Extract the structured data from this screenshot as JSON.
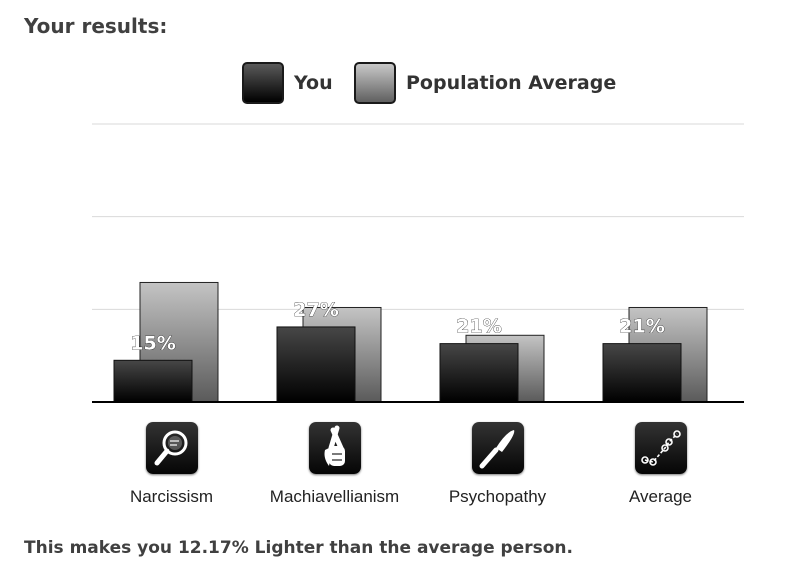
{
  "heading": "Your results:",
  "legend": {
    "you": "You",
    "population": "Population Average"
  },
  "chart_data": {
    "type": "bar",
    "categories": [
      "Narcissism",
      "Machiavellianism",
      "Psychopathy",
      "Average"
    ],
    "series": [
      {
        "name": "You",
        "values": [
          15,
          27,
          21,
          21
        ],
        "labels": [
          "15%",
          "27%",
          "21%",
          "21%"
        ]
      },
      {
        "name": "Population Average",
        "values": [
          43,
          34,
          24,
          34
        ]
      }
    ],
    "ylim": [
      0,
      100
    ],
    "gridlines": [
      33.3,
      66.7,
      100
    ],
    "legend_position": "top-center",
    "icons": [
      "magnifier-icon",
      "crossed-fingers-icon",
      "knife-icon",
      "graph-icon"
    ],
    "colors": {
      "you": "#000000",
      "population": "#808080",
      "grid": "#d9d9d9",
      "axis": "#000000"
    }
  },
  "footer": "This makes you 12.17% Lighter than the average person."
}
